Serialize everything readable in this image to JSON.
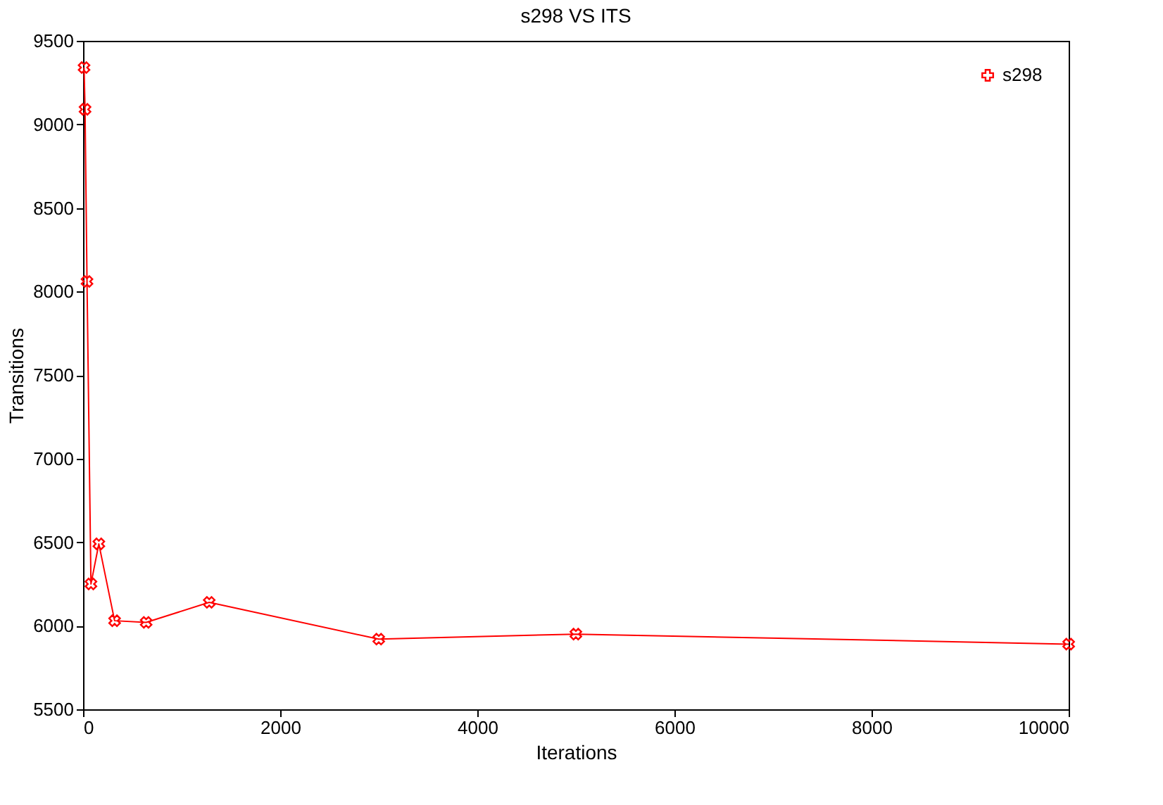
{
  "chart_data": {
    "type": "line",
    "title": "s298 VS ITS",
    "xlabel": "Iterations",
    "ylabel": "Transitions",
    "xlim": [
      0,
      10000
    ],
    "xticks": [
      0,
      2000,
      4000,
      6000,
      8000,
      10000
    ],
    "ylim": [
      5500,
      9500
    ],
    "yticks": [
      5500,
      6000,
      6500,
      7000,
      7500,
      8000,
      8500,
      9000,
      9500
    ],
    "grid": false,
    "legend": "top right",
    "marker": "cross",
    "line_style": "solid",
    "series": [
      {
        "name": "s298",
        "color": "#ff0000",
        "x": [
          10,
          20,
          40,
          80,
          160,
          320,
          640,
          1280,
          3000,
          5000,
          10000
        ],
        "values": [
          9340,
          9090,
          8060,
          6250,
          6490,
          6030,
          6020,
          6140,
          5920,
          5950,
          5890
        ]
      }
    ]
  }
}
